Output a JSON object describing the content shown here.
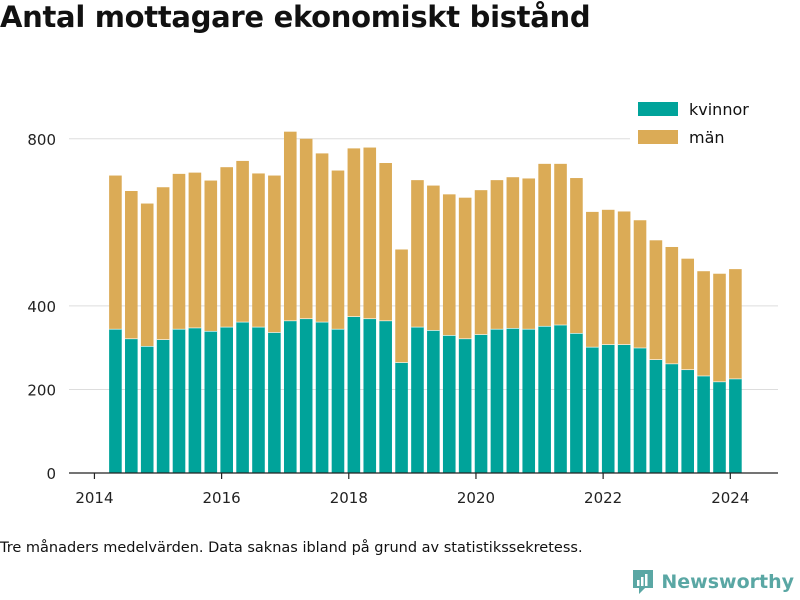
{
  "title": "Antal mottagare ekonomiskt bistånd",
  "footnote": "Tre månaders medelvärden. Data saknas ibland på grund av statistikssekretess.",
  "brand": "Newsworthy",
  "colors": {
    "kvinnor": "#00a39a",
    "man": "#dbab56",
    "grid": "#dddddd",
    "axis": "#222222",
    "brand": "#5aa7a4"
  },
  "chart_data": {
    "type": "bar",
    "stacked": true,
    "title": "",
    "xlabel": "",
    "ylabel": "",
    "x": [
      2014.33,
      2014.58,
      2014.83,
      2015.08,
      2015.33,
      2015.58,
      2015.83,
      2016.08,
      2016.33,
      2016.58,
      2016.83,
      2017.08,
      2017.33,
      2017.58,
      2017.83,
      2018.08,
      2018.33,
      2018.58,
      2018.83,
      2019.08,
      2019.33,
      2019.58,
      2019.83,
      2020.08,
      2020.33,
      2020.58,
      2020.83,
      2021.08,
      2021.33,
      2021.58,
      2021.83,
      2022.08,
      2022.33,
      2022.58,
      2022.83,
      2023.08,
      2023.33,
      2023.58,
      2023.83,
      2024.08
    ],
    "xticks": [
      2014,
      2016,
      2018,
      2020,
      2022,
      2024
    ],
    "xlim": [
      2013.6,
      2024.75
    ],
    "ylim": [
      0,
      900
    ],
    "yticks": [
      0,
      200,
      400,
      800
    ],
    "grid": true,
    "legend_position": "top-right",
    "series": [
      {
        "name": "kvinnor",
        "values": [
          345,
          322,
          304,
          320,
          345,
          348,
          340,
          350,
          362,
          350,
          337,
          365,
          370,
          362,
          345,
          375,
          370,
          365,
          265,
          350,
          342,
          330,
          322,
          332,
          345,
          347,
          345,
          352,
          355,
          335,
          302,
          308,
          308,
          300,
          272,
          262,
          248,
          233,
          219,
          226
        ]
      },
      {
        "name": "män",
        "values": [
          367,
          353,
          341,
          364,
          371,
          371,
          360,
          382,
          385,
          367,
          375,
          452,
          430,
          403,
          379,
          402,
          409,
          377,
          270,
          351,
          346,
          337,
          337,
          345,
          356,
          361,
          360,
          388,
          385,
          371,
          323,
          322,
          318,
          305,
          285,
          279,
          265,
          250,
          258,
          262
        ]
      }
    ]
  }
}
